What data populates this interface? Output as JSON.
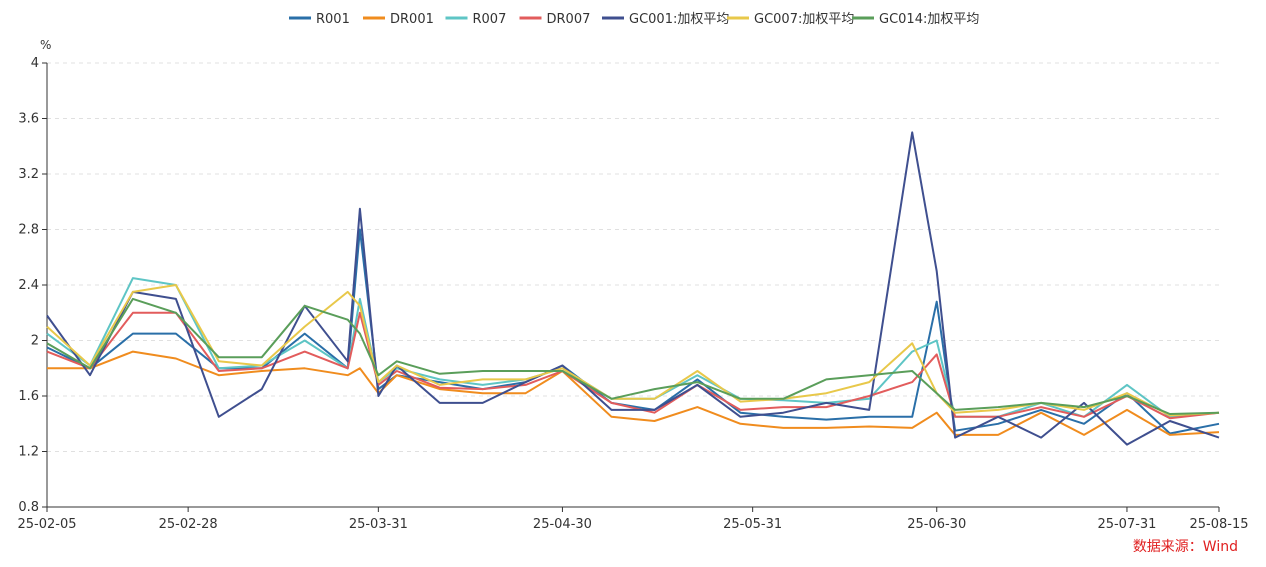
{
  "chart_data": {
    "type": "line",
    "unit": "%",
    "ylim": [
      0.8,
      4.0
    ],
    "yticks": [
      0.8,
      1.2,
      1.6,
      2.0,
      2.4,
      2.8,
      3.2,
      3.6,
      4.0
    ],
    "ytick_labels": [
      "0.8",
      "1.2",
      "1.6",
      "2",
      "2.4",
      "2.8",
      "3.2",
      "3.6",
      "4"
    ],
    "xlim": [
      "2025-02-05",
      "2025-08-15"
    ],
    "xticks": [
      {
        "date": "2025-02-05",
        "label": "25-02-05"
      },
      {
        "date": "2025-02-28",
        "label": "25-02-28"
      },
      {
        "date": "2025-03-31",
        "label": "25-03-31"
      },
      {
        "date": "2025-04-30",
        "label": "25-04-30"
      },
      {
        "date": "2025-05-31",
        "label": "25-05-31"
      },
      {
        "date": "2025-06-30",
        "label": "25-06-30"
      },
      {
        "date": "2025-07-31",
        "label": "25-07-31"
      },
      {
        "date": "2025-08-15",
        "label": "25-08-15"
      }
    ],
    "grid": "horizontal-dashed",
    "legend_position": "top",
    "source": "数据来源：Wind",
    "x": [
      "2025-02-05",
      "2025-02-12",
      "2025-02-19",
      "2025-02-26",
      "2025-03-05",
      "2025-03-12",
      "2025-03-19",
      "2025-03-26",
      "2025-03-28",
      "2025-03-31",
      "2025-04-03",
      "2025-04-10",
      "2025-04-17",
      "2025-04-24",
      "2025-04-30",
      "2025-05-08",
      "2025-05-15",
      "2025-05-22",
      "2025-05-29",
      "2025-06-05",
      "2025-06-12",
      "2025-06-19",
      "2025-06-26",
      "2025-06-30",
      "2025-07-03",
      "2025-07-10",
      "2025-07-17",
      "2025-07-24",
      "2025-07-31",
      "2025-08-07",
      "2025-08-15"
    ],
    "series": [
      {
        "name": "R001",
        "color": "#2a6fa8",
        "values": [
          1.95,
          1.8,
          2.05,
          2.05,
          1.8,
          1.8,
          2.05,
          1.8,
          2.8,
          1.65,
          1.75,
          1.7,
          1.65,
          1.7,
          1.82,
          1.55,
          1.5,
          1.72,
          1.48,
          1.45,
          1.43,
          1.45,
          1.45,
          2.28,
          1.35,
          1.4,
          1.5,
          1.4,
          1.62,
          1.33,
          1.4
        ]
      },
      {
        "name": "DR001",
        "color": "#f08c1e",
        "values": [
          1.8,
          1.8,
          1.92,
          1.87,
          1.75,
          1.78,
          1.8,
          1.75,
          1.8,
          1.62,
          1.75,
          1.65,
          1.62,
          1.62,
          1.78,
          1.45,
          1.42,
          1.52,
          1.4,
          1.37,
          1.37,
          1.38,
          1.37,
          1.48,
          1.32,
          1.32,
          1.48,
          1.32,
          1.5,
          1.32,
          1.34
        ]
      },
      {
        "name": "R007",
        "color": "#5ec5c5",
        "values": [
          2.05,
          1.82,
          2.45,
          2.4,
          1.8,
          1.82,
          2.0,
          1.8,
          2.3,
          1.7,
          1.8,
          1.72,
          1.68,
          1.72,
          1.8,
          1.58,
          1.58,
          1.75,
          1.58,
          1.57,
          1.55,
          1.58,
          1.92,
          2.0,
          1.45,
          1.45,
          1.55,
          1.45,
          1.68,
          1.45,
          1.48
        ]
      },
      {
        "name": "DR007",
        "color": "#e25c5c",
        "values": [
          1.92,
          1.8,
          2.2,
          2.2,
          1.78,
          1.8,
          1.92,
          1.8,
          2.2,
          1.68,
          1.78,
          1.66,
          1.65,
          1.68,
          1.78,
          1.55,
          1.48,
          1.68,
          1.5,
          1.52,
          1.52,
          1.6,
          1.7,
          1.9,
          1.45,
          1.45,
          1.52,
          1.45,
          1.6,
          1.44,
          1.48
        ]
      },
      {
        "name": "GC001:加权平均",
        "color": "#3f4f8f",
        "values": [
          2.18,
          1.75,
          2.35,
          2.3,
          1.45,
          1.65,
          2.25,
          1.85,
          2.95,
          1.6,
          1.82,
          1.55,
          1.55,
          1.7,
          1.82,
          1.5,
          1.5,
          1.68,
          1.45,
          1.48,
          1.55,
          1.5,
          3.5,
          2.5,
          1.3,
          1.45,
          1.3,
          1.55,
          1.25,
          1.42,
          1.3
        ]
      },
      {
        "name": "GC007:加权平均",
        "color": "#e8c84a",
        "values": [
          2.1,
          1.82,
          2.35,
          2.4,
          1.85,
          1.82,
          2.1,
          2.35,
          2.25,
          1.7,
          1.82,
          1.68,
          1.72,
          1.72,
          1.8,
          1.58,
          1.58,
          1.78,
          1.56,
          1.58,
          1.62,
          1.7,
          1.98,
          1.62,
          1.48,
          1.5,
          1.55,
          1.5,
          1.62,
          1.46,
          1.48
        ]
      },
      {
        "name": "GC014:加权平均",
        "color": "#5a9e5a",
        "values": [
          1.98,
          1.8,
          2.3,
          2.2,
          1.88,
          1.88,
          2.25,
          2.15,
          2.05,
          1.75,
          1.85,
          1.76,
          1.78,
          1.78,
          1.78,
          1.58,
          1.65,
          1.7,
          1.58,
          1.58,
          1.72,
          1.75,
          1.78,
          1.62,
          1.5,
          1.52,
          1.55,
          1.52,
          1.6,
          1.47,
          1.48
        ]
      }
    ]
  }
}
